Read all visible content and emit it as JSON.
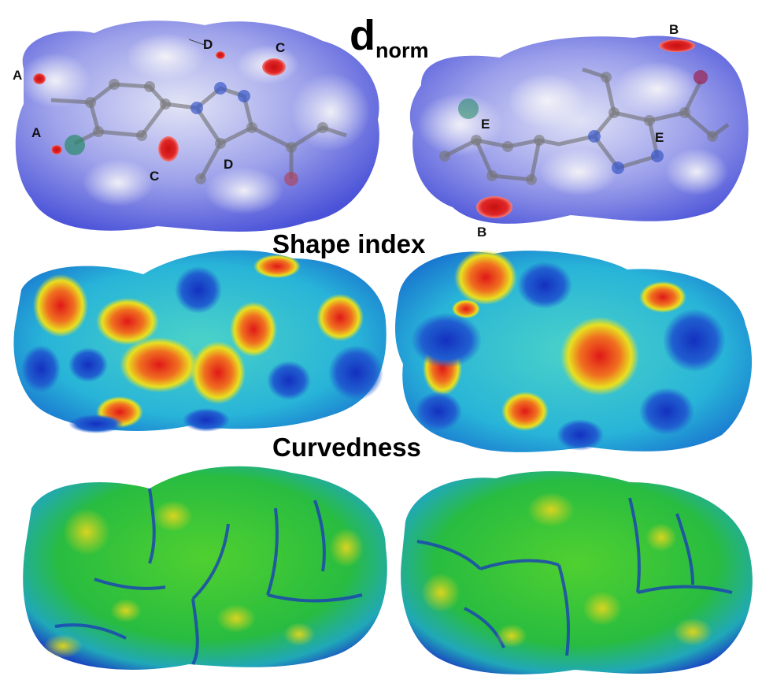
{
  "titles": {
    "dnorm_main": "d",
    "dnorm_sub": "norm",
    "shape_index": "Shape index",
    "curvedness": "Curvedness"
  },
  "labels": {
    "left": {
      "A1": "A",
      "A2": "A",
      "D1": "D",
      "D2": "D",
      "C1": "C",
      "C2": "C"
    },
    "right": {
      "B1": "B",
      "B2": "B",
      "E1": "E",
      "E2": "E"
    }
  },
  "colors": {
    "dnorm_surface": "#6a70e6",
    "dnorm_white": "#f0f0f6",
    "red_spot": "#d81e1e",
    "shape_surface": "#2ec0d6",
    "shape_red": "#e8321c",
    "shape_yellow": "#e8e020",
    "shape_blue": "#1c3cc8",
    "curv_surface": "#30c830",
    "curv_edge": "#1a3cb0"
  }
}
